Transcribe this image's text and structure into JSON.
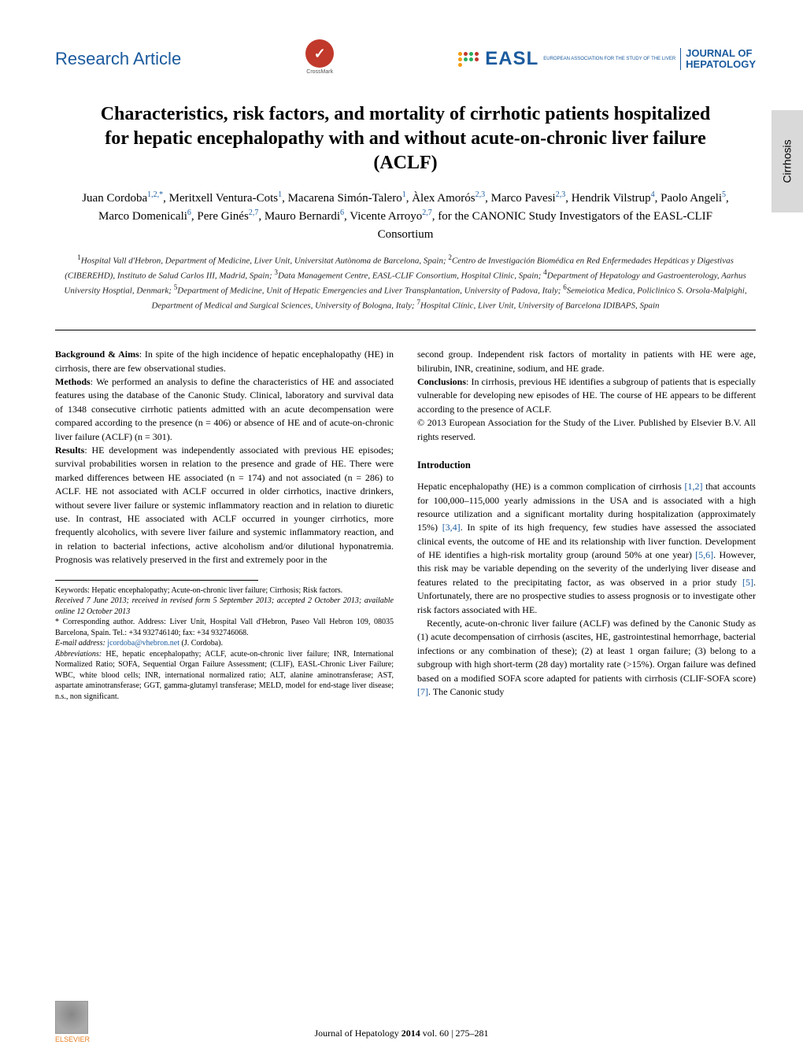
{
  "header": {
    "section_label": "Research Article",
    "crossmark_label": "CrossMark",
    "journal_org": "EASL",
    "journal_tagline": "EUROPEAN ASSOCIATION FOR THE STUDY OF THE LIVER",
    "journal_name_line1": "JOURNAL OF",
    "journal_name_line2": "HEPATOLOGY"
  },
  "side_tab": "Cirrhosis",
  "title": "Characteristics, risk factors, and mortality of cirrhotic patients hospitalized for hepatic encephalopathy with and without acute-on-chronic liver failure (ACLF)",
  "authors_html": "Juan Cordoba<sup>1,2,*</sup>, Meritxell Ventura-Cots<sup>1</sup>, Macarena Simón-Talero<sup>1</sup>, Àlex Amorós<sup>2,3</sup>, Marco Pavesi<sup>2,3</sup>, Hendrik Vilstrup<sup>4</sup>, Paolo Angeli<sup>5</sup>, Marco Domenicali<sup>6</sup>, Pere Ginés<sup>2,7</sup>, Mauro Bernardi<sup>6</sup>, Vicente Arroyo<sup>2,7</sup>, for the CANONIC Study Investigators of the EASL-CLIF Consortium",
  "affiliations_html": "<sup>1</sup>Hospital Vall d'Hebron, Department of Medicine, Liver Unit, Universitat Autònoma de Barcelona, Spain; <sup>2</sup>Centro de Investigación Biomédica en Red Enfermedades Hepáticas y Digestivas (CIBEREHD), Instituto de Salud Carlos III, Madrid, Spain; <sup>3</sup>Data Management Centre, EASL-CLIF Consortium, Hospital Clinic, Spain; <sup>4</sup>Department of Hepatology and Gastroenterology, Aarhus University Hosptial, Denmark; <sup>5</sup>Department of Medicine, Unit of Hepatic Emergencies and Liver Transplantation, University of Padova, Italy; <sup>6</sup>Semeiotica Medica, Policlinico S. Orsola-Malpighi, Department of Medical and Surgical Sciences, University of Bologna, Italy; <sup>7</sup>Hospital Clínic, Liver Unit, University of Barcelona IDIBAPS, Spain",
  "abstract": {
    "background_label": "Background & Aims",
    "background": ": In spite of the high incidence of hepatic encephalopathy (HE) in cirrhosis, there are few observational studies.",
    "methods_label": "Methods",
    "methods": ": We performed an analysis to define the characteristics of HE and associated features using the database of the Canonic Study. Clinical, laboratory and survival data of 1348 consecutive cirrhotic patients admitted with an acute decompensation were compared according to the presence (n = 406) or absence of HE and of acute-on-chronic liver failure (ACLF) (n = 301).",
    "results_label": "Results",
    "results": ": HE development was independently associated with previous HE episodes; survival probabilities worsen in relation to the presence and grade of HE. There were marked differences between HE associated (n = 174) and not associated (n = 286) to ACLF. HE not associated with ACLF occurred in older cirrhotics, inactive drinkers, without severe liver failure or systemic inflammatory reaction and in relation to diuretic use. In contrast, HE associated with ACLF occurred in younger cirrhotics, more frequently alcoholics, with severe liver failure and systemic inflammatory reaction, and in relation to bacterial infections, active alcoholism and/or dilutional hyponatremia. Prognosis was relatively preserved in the first and extremely poor in the",
    "results_cont": "second group. Independent risk factors of mortality in patients with HE were age, bilirubin, INR, creatinine, sodium, and HE grade.",
    "conclusions_label": "Conclusions",
    "conclusions": ": In cirrhosis, previous HE identifies a subgroup of patients that is especially vulnerable for developing new episodes of HE. The course of HE appears to be different according to the presence of ACLF.",
    "copyright": "© 2013 European Association for the Study of the Liver. Published by Elsevier B.V. All rights reserved."
  },
  "intro": {
    "heading": "Introduction",
    "para1_a": "Hepatic encephalopathy (HE) is a common complication of cirrhosis ",
    "ref1": "[1,2]",
    "para1_b": " that accounts for 100,000–115,000 yearly admissions in the USA and is associated with a high resource utilization and a significant mortality during hospitalization (approximately 15%) ",
    "ref2": "[3,4]",
    "para1_c": ". In spite of its high frequency, few studies have assessed the associated clinical events, the outcome of HE and its relationship with liver function. Development of HE identifies a high-risk mortality group (around 50% at one year) ",
    "ref3": "[5,6]",
    "para1_d": ". However, this risk may be variable depending on the severity of the underlying liver disease and features related to the precipitating factor, as was observed in a prior study ",
    "ref4": "[5]",
    "para1_e": ". Unfortunately, there are no prospective studies to assess prognosis or to investigate other risk factors associated with HE.",
    "para2_a": "Recently, acute-on-chronic liver failure (ACLF) was defined by the Canonic Study as (1) acute decompensation of cirrhosis (ascites, HE, gastrointestinal hemorrhage, bacterial infections or any combination of these); (2) at least 1 organ failure; (3) belong to a subgroup with high short-term (28 day) mortality rate (>15%). Organ failure was defined based on a modified SOFA score adapted for patients with cirrhosis (CLIF-SOFA score) ",
    "ref5": "[7]",
    "para2_b": ". The Canonic study"
  },
  "footnotes": {
    "keywords": "Keywords: Hepatic encephalopathy; Acute-on-chronic liver failure; Cirrhosis; Risk factors.",
    "received": "Received 7 June 2013; received in revised form 5 September 2013; accepted 2 October 2013; available online 12 October 2013",
    "corresponding": "* Corresponding author. Address: Liver Unit, Hospital Vall d'Hebron, Paseo Vall Hebron 109, 08035 Barcelona, Spain. Tel.: +34 932746140; fax: +34 932746068.",
    "email_label": "E-mail address:",
    "email": "jcordoba@vhebron.net",
    "email_name": " (J. Cordoba).",
    "abbrev": "Abbreviations: HE, hepatic encephalopathy; ACLF, acute-on-chronic liver failure; INR, International Normalized Ratio; SOFA, Sequential Organ Failure Assessment; (CLIF), EASL-Chronic Liver Failure; WBC, white blood cells; INR, international normalized ratio; ALT, alanine aminotransferase; AST, aspartate aminotransferase; GGT, gamma-glutamyl transferase; MELD, model for end-stage liver disease; n.s., non significant."
  },
  "footer": {
    "journal": "Journal of Hepatology ",
    "year": "2014",
    "vol": " vol. 60 ",
    "pages": "| 275–281",
    "publisher": "ELSEVIER"
  },
  "colors": {
    "brand_blue": "#1a5a9e",
    "crossmark_red": "#c0392b",
    "sidebar_gray": "#d9d9d9",
    "elsevier_orange": "#e67e22"
  }
}
